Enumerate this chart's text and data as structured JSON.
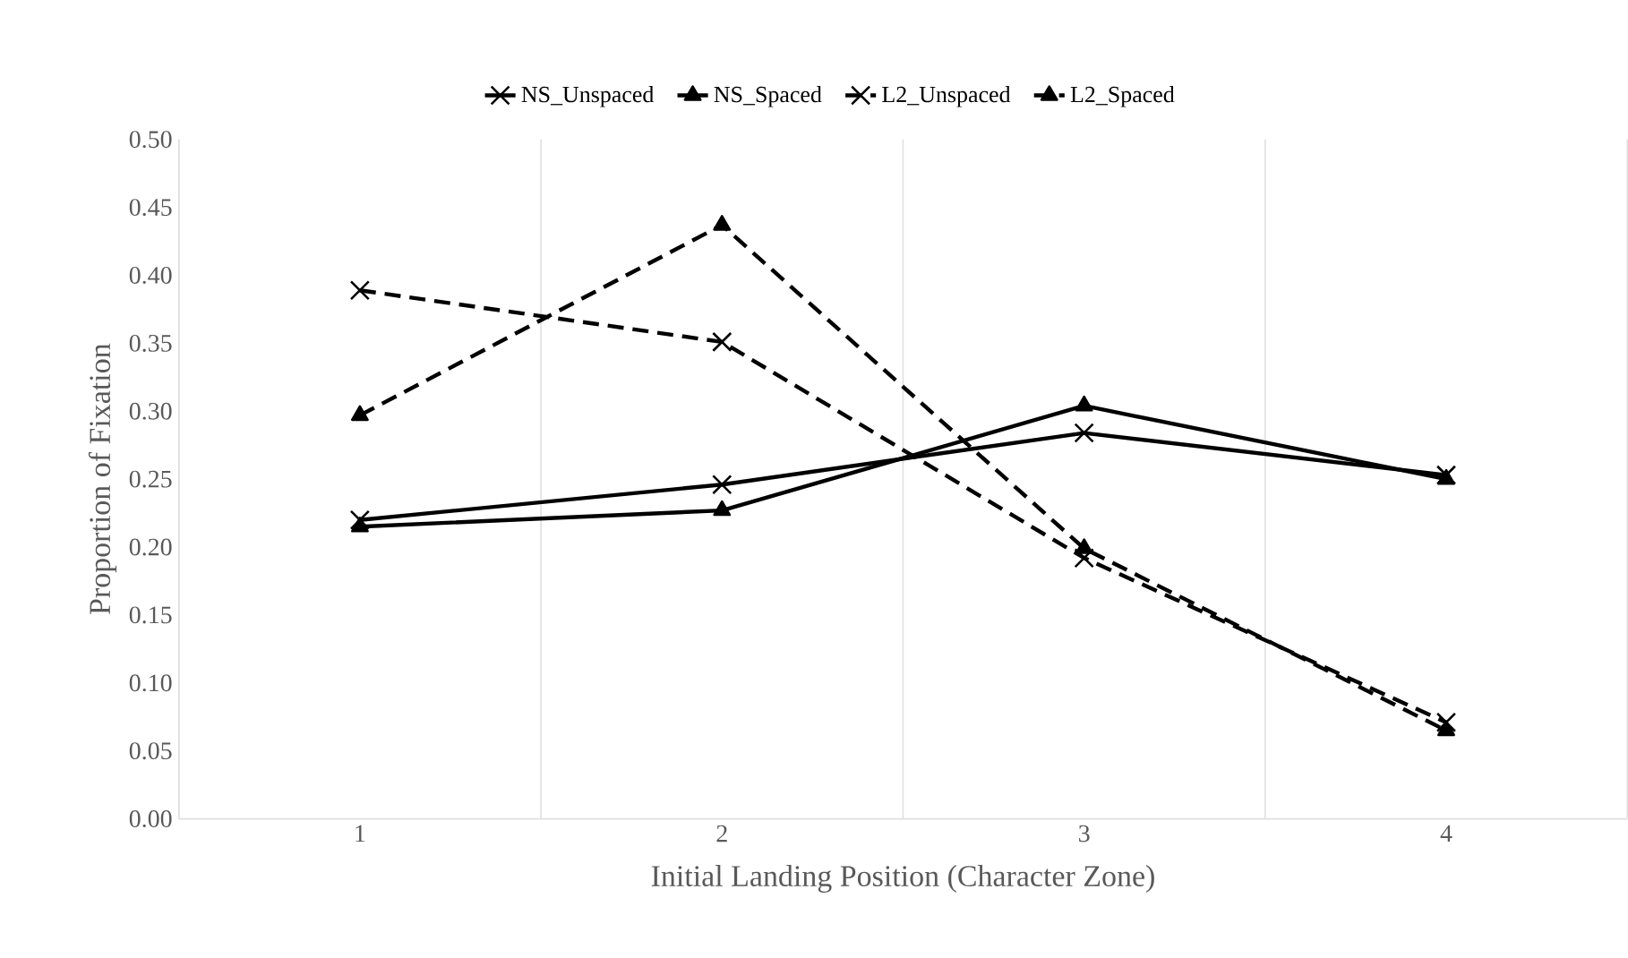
{
  "chart_data": {
    "type": "line",
    "xlabel": "Initial Landing Position (Character Zone)",
    "ylabel": "Proportion of Fixation",
    "categories": [
      "1",
      "2",
      "3",
      "4"
    ],
    "series": [
      {
        "name": "NS_Unspaced",
        "color": "#000000",
        "marker": "cross",
        "line_style": "solid",
        "values": [
          0.22,
          0.246,
          0.284,
          0.253
        ]
      },
      {
        "name": "NS_Spaced",
        "color": "#000000",
        "marker": "triangle",
        "line_style": "solid",
        "values": [
          0.215,
          0.227,
          0.304,
          0.25
        ]
      },
      {
        "name": "L2_Unspaced",
        "color": "#000000",
        "marker": "cross",
        "line_style": "dashed",
        "values": [
          0.389,
          0.351,
          0.192,
          0.071
        ]
      },
      {
        "name": "L2_Spaced",
        "color": "#000000",
        "marker": "triangle",
        "line_style": "dashed",
        "values": [
          0.297,
          0.437,
          0.199,
          0.065
        ]
      }
    ],
    "ylim": [
      0,
      0.5
    ],
    "yticks": [
      {
        "value": 0,
        "label": "0.00"
      },
      {
        "value": 0.05,
        "label": "0.05"
      },
      {
        "value": 0.1,
        "label": "0.10"
      },
      {
        "value": 0.15,
        "label": "0.15"
      },
      {
        "value": 0.2,
        "label": "0.20"
      },
      {
        "value": 0.25,
        "label": "0.25"
      },
      {
        "value": 0.3,
        "label": "0.30"
      },
      {
        "value": 0.35,
        "label": "0.35"
      },
      {
        "value": 0.4,
        "label": "0.40"
      },
      {
        "value": 0.45,
        "label": "0.45"
      },
      {
        "value": 0.5,
        "label": "0.50"
      }
    ],
    "grid": "x",
    "legend": "top"
  }
}
